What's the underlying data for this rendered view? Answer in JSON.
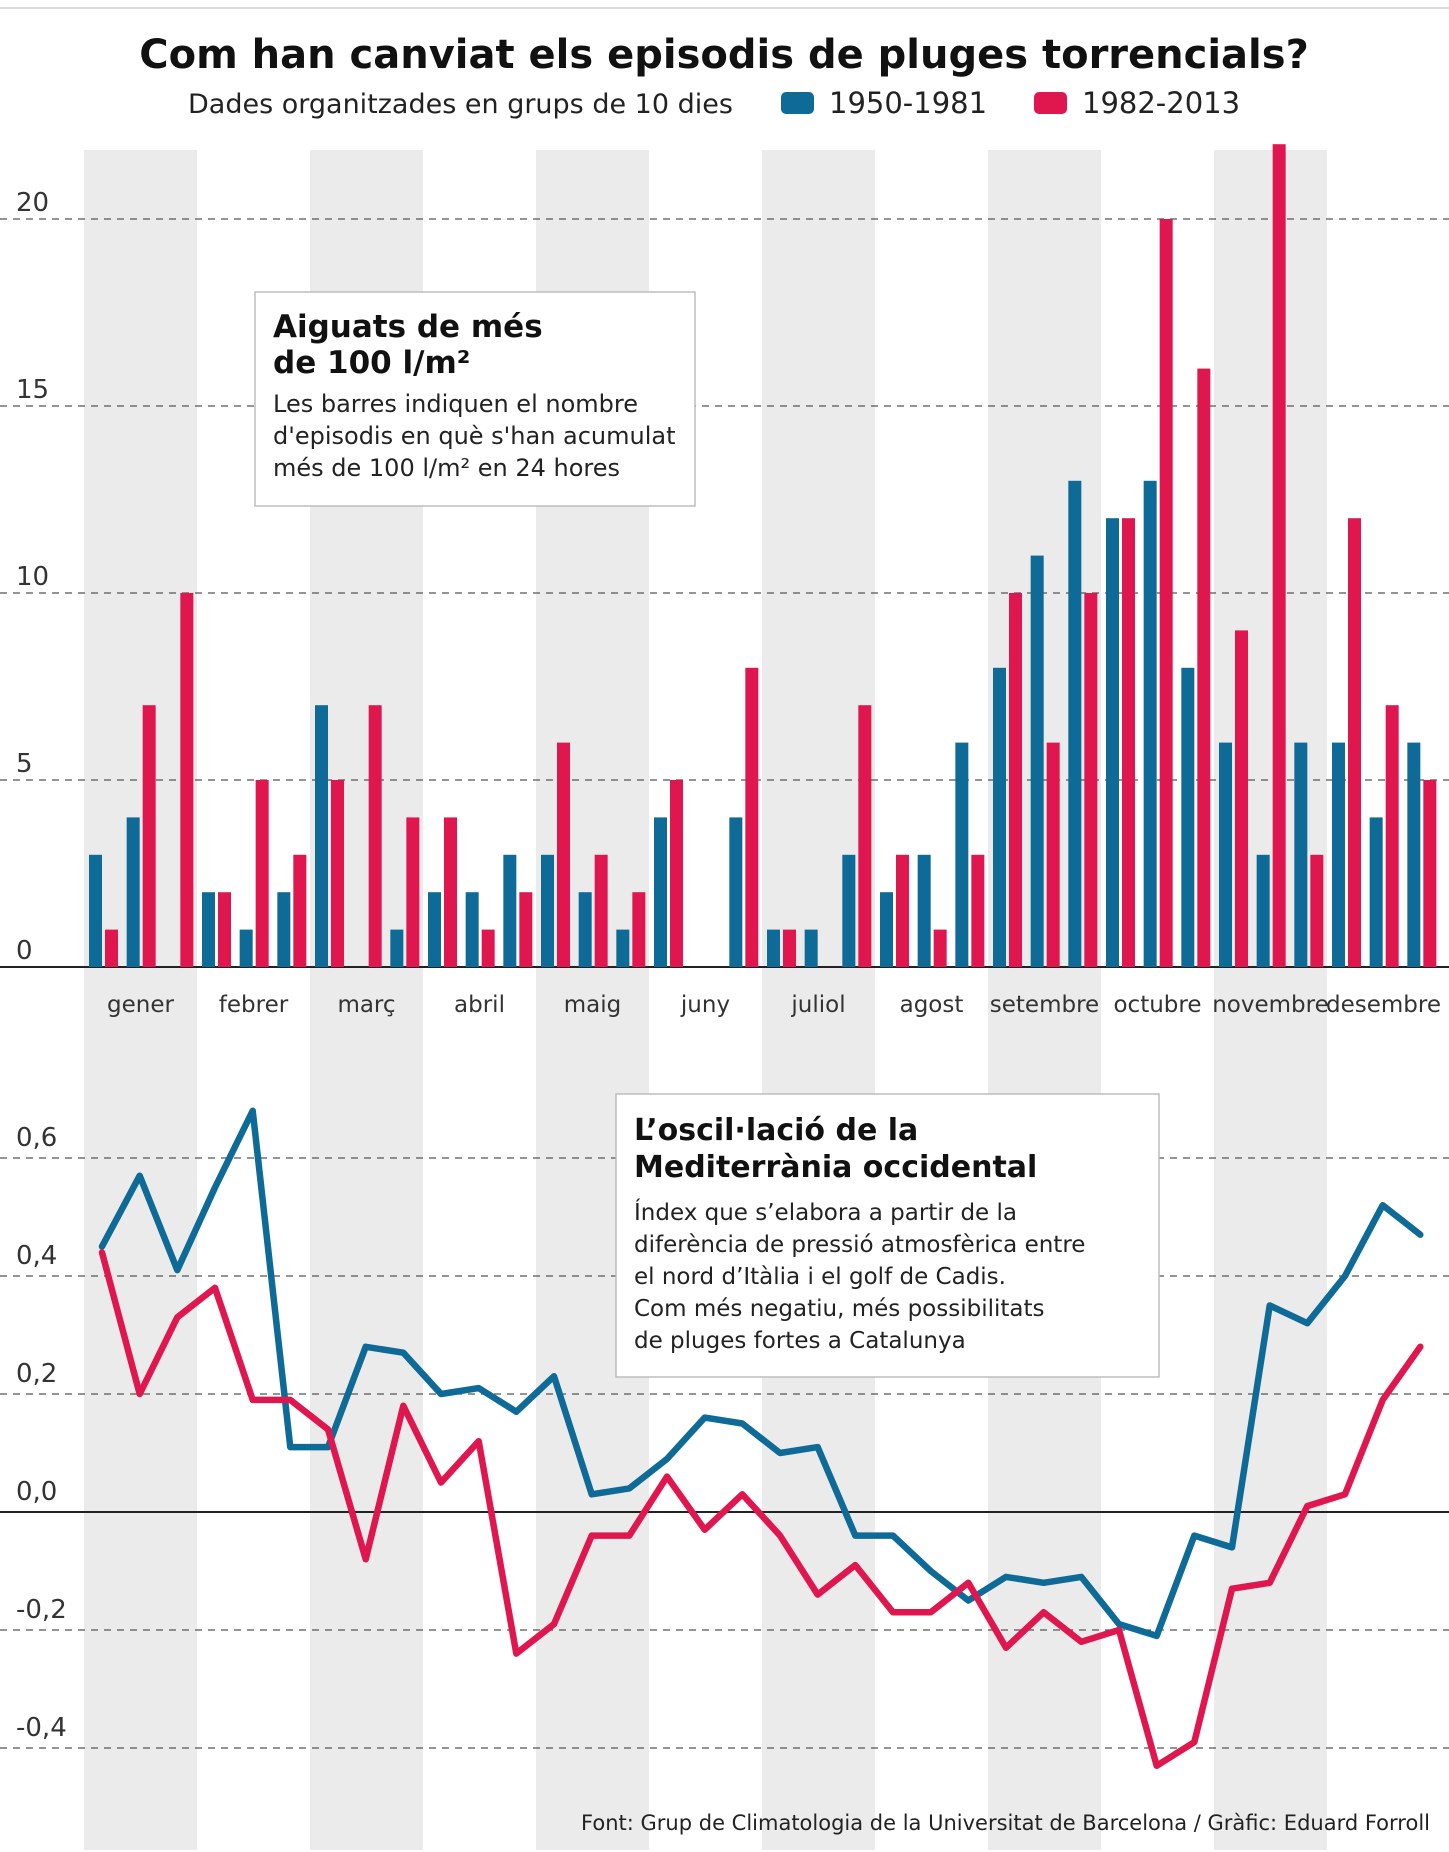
{
  "title": "Com han canviat els episodis de pluges torrencials?",
  "subtitle": "Dades organitzades en grups de 10 dies",
  "legend": [
    {
      "label": "1950-1981",
      "color": "#0e6a96"
    },
    {
      "label": "1982-2013",
      "color": "#e0174f"
    }
  ],
  "boxes": {
    "bars": {
      "title_lines": [
        "Aiguats de més",
        "de 100 l/m²"
      ],
      "body_lines": [
        "Les barres indiquen el nombre",
        "d'episodis en què s'han acumulat",
        "més de 100 l/m² en 24 hores"
      ]
    },
    "lines": {
      "title_lines": [
        "L’oscil·lació de la",
        "Mediterrània occidental"
      ],
      "body_lines": [
        "Índex que s’elabora a partir de la",
        "diferència de pressió atmosfèrica entre",
        "el nord d’Itàlia i el golf de Cadis.",
        "Com més negatiu, més possibilitats",
        "de pluges fortes a Catalunya"
      ]
    }
  },
  "source": "Font: Grup de Climatologia de la Universitat de Barcelona / Gràfic: Eduard Forroll",
  "chart_data": [
    {
      "type": "bar",
      "title": "Aiguats de més de 100 l/m²",
      "months": [
        "gener",
        "febrer",
        "març",
        "abril",
        "maig",
        "juny",
        "juliol",
        "agost",
        "setembre",
        "octubre",
        "novembre",
        "desembre"
      ],
      "yticks": [
        0,
        5,
        10,
        15,
        20
      ],
      "ylim": [
        0,
        23
      ],
      "series": [
        {
          "name": "1950-1981",
          "color": "#0e6a96",
          "values": [
            3,
            4,
            0,
            2,
            1,
            2,
            7,
            0,
            1,
            2,
            2,
            3,
            3,
            2,
            1,
            4,
            0,
            4,
            1,
            1,
            3,
            2,
            3,
            6,
            8,
            11,
            13,
            12,
            13,
            8,
            6,
            3,
            6,
            6,
            4,
            6
          ]
        },
        {
          "name": "1982-2013",
          "color": "#e0174f",
          "values": [
            1,
            7,
            10,
            2,
            5,
            3,
            5,
            7,
            4,
            4,
            1,
            2,
            6,
            3,
            2,
            5,
            0,
            8,
            1,
            0,
            7,
            3,
            1,
            3,
            10,
            6,
            10,
            12,
            20,
            16,
            9,
            22,
            3,
            12,
            7,
            5
          ]
        }
      ]
    },
    {
      "type": "line",
      "title": "L’oscil·lació de la Mediterrània occidental",
      "yticks": [
        0.6,
        0.4,
        0.2,
        0.0,
        -0.2,
        -0.4
      ],
      "ytick_labels": [
        "0,6",
        "0,4",
        "0,2",
        "0,0",
        "-0,2",
        "-0,4"
      ],
      "ylim": [
        -0.45,
        0.65
      ],
      "series": [
        {
          "name": "1950-1981",
          "color": "#0e6a96",
          "values": [
            0.45,
            0.57,
            0.41,
            0.55,
            0.68,
            0.11,
            0.11,
            0.28,
            0.27,
            0.2,
            0.21,
            0.17,
            0.23,
            0.03,
            0.04,
            0.09,
            0.16,
            0.15,
            0.1,
            0.11,
            -0.04,
            -0.04,
            -0.1,
            -0.15,
            -0.11,
            -0.12,
            -0.11,
            -0.19,
            -0.21,
            -0.04,
            -0.06,
            0.35,
            0.32,
            0.4,
            0.52,
            0.47
          ]
        },
        {
          "name": "1982-2013",
          "color": "#e0174f",
          "values": [
            0.44,
            0.2,
            0.33,
            0.38,
            0.19,
            0.19,
            0.14,
            -0.08,
            0.18,
            0.05,
            0.12,
            -0.24,
            -0.19,
            -0.04,
            -0.04,
            0.06,
            -0.03,
            0.03,
            -0.04,
            -0.14,
            -0.09,
            -0.17,
            -0.17,
            -0.12,
            -0.23,
            -0.17,
            -0.22,
            -0.2,
            -0.43,
            -0.39,
            -0.13,
            -0.12,
            0.01,
            0.03,
            0.19,
            0.28
          ]
        }
      ]
    }
  ]
}
